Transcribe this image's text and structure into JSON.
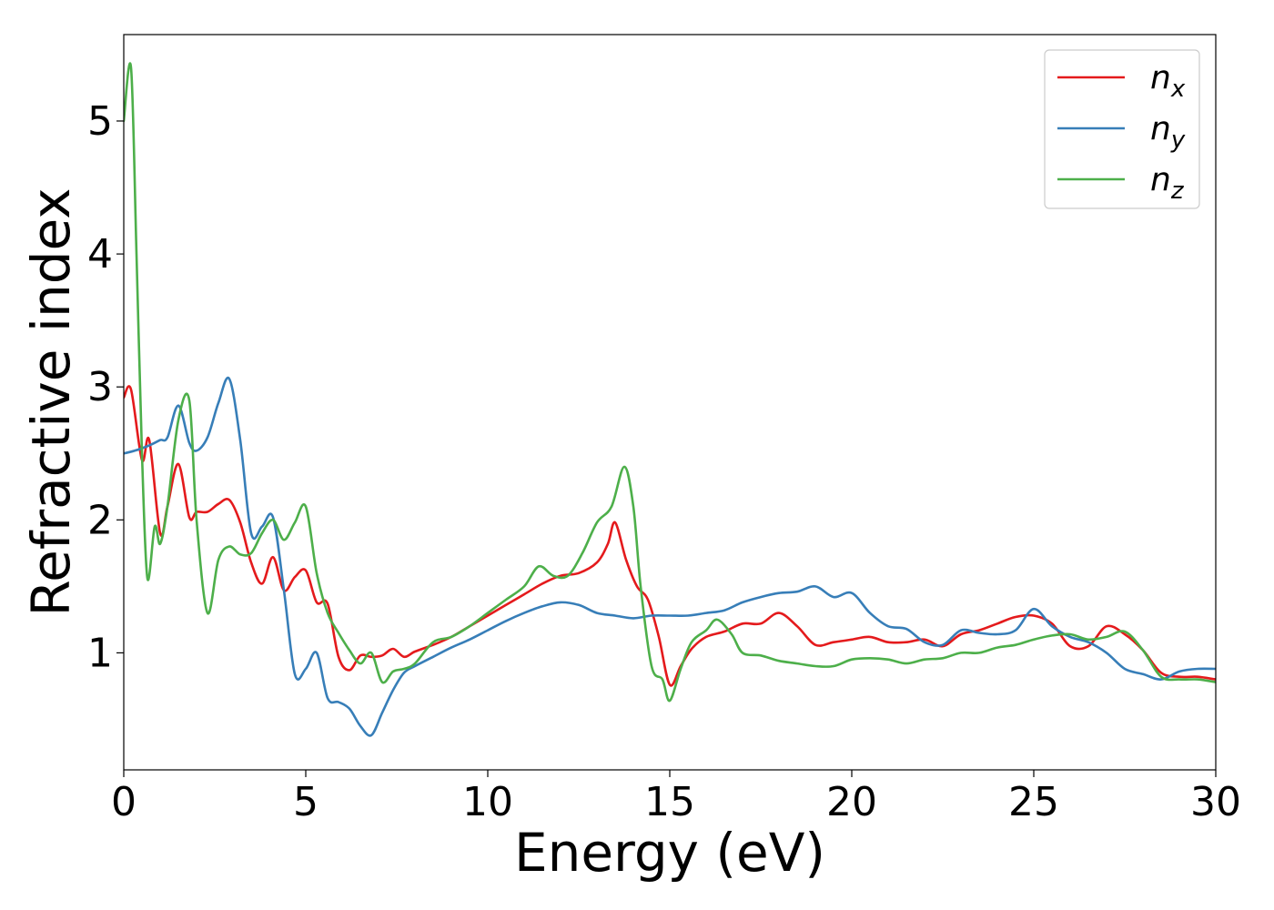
{
  "chart_data": {
    "type": "line",
    "xlabel": "Energy (eV)",
    "ylabel": "Refractive index",
    "xlim": [
      0,
      30
    ],
    "ylim": [
      0.12,
      5.65
    ],
    "xticks": [
      0,
      5,
      10,
      15,
      20,
      25,
      30
    ],
    "yticks": [
      1,
      2,
      3,
      4,
      5
    ],
    "grid": false,
    "legend_position": "top-right",
    "series": [
      {
        "name": "n",
        "subscript": "x",
        "color": "#e41a1c",
        "x": [
          0,
          0.2,
          0.5,
          0.7,
          1.0,
          1.2,
          1.5,
          1.8,
          2.0,
          2.3,
          2.6,
          2.9,
          3.2,
          3.5,
          3.8,
          4.1,
          4.4,
          4.7,
          5.0,
          5.3,
          5.6,
          5.9,
          6.2,
          6.5,
          6.8,
          7.1,
          7.4,
          7.7,
          8.0,
          8.5,
          9.0,
          9.5,
          10.0,
          10.5,
          11.0,
          11.5,
          12.0,
          12.5,
          13.0,
          13.3,
          13.5,
          13.8,
          14.1,
          14.4,
          14.7,
          15.0,
          15.3,
          15.6,
          16.0,
          16.5,
          17.0,
          17.5,
          18.0,
          18.5,
          19.0,
          19.5,
          20.0,
          20.5,
          21.0,
          21.5,
          22.0,
          22.5,
          23.0,
          23.5,
          24.0,
          24.5,
          25.0,
          25.5,
          26.0,
          26.5,
          27.0,
          27.5,
          28.0,
          28.5,
          29.0,
          29.5,
          30.0
        ],
        "y": [
          2.92,
          2.98,
          2.45,
          2.6,
          1.9,
          2.1,
          2.42,
          2.02,
          2.06,
          2.06,
          2.12,
          2.15,
          1.98,
          1.68,
          1.52,
          1.72,
          1.47,
          1.57,
          1.62,
          1.38,
          1.37,
          0.97,
          0.87,
          0.98,
          0.97,
          0.98,
          1.03,
          0.97,
          1.01,
          1.06,
          1.12,
          1.2,
          1.28,
          1.36,
          1.44,
          1.52,
          1.58,
          1.6,
          1.68,
          1.82,
          1.98,
          1.7,
          1.5,
          1.4,
          1.12,
          0.76,
          0.9,
          1.03,
          1.12,
          1.16,
          1.22,
          1.22,
          1.3,
          1.2,
          1.06,
          1.08,
          1.1,
          1.12,
          1.08,
          1.08,
          1.1,
          1.05,
          1.14,
          1.17,
          1.22,
          1.27,
          1.28,
          1.22,
          1.05,
          1.05,
          1.2,
          1.14,
          1.02,
          0.85,
          0.82,
          0.82,
          0.8
        ]
      },
      {
        "name": "n",
        "subscript": "y",
        "color": "#377eb8",
        "x": [
          0,
          0.3,
          0.7,
          1.0,
          1.2,
          1.5,
          1.8,
          2.0,
          2.3,
          2.6,
          2.9,
          3.2,
          3.5,
          3.8,
          4.1,
          4.4,
          4.7,
          5.0,
          5.3,
          5.6,
          5.9,
          6.2,
          6.5,
          6.8,
          7.1,
          7.4,
          7.7,
          8.0,
          8.5,
          9.0,
          9.5,
          10.0,
          10.5,
          11.0,
          11.5,
          12.0,
          12.5,
          13.0,
          13.5,
          14.0,
          14.5,
          15.0,
          15.5,
          16.0,
          16.5,
          17.0,
          17.5,
          18.0,
          18.5,
          19.0,
          19.5,
          20.0,
          20.5,
          21.0,
          21.5,
          22.0,
          22.5,
          23.0,
          23.5,
          24.0,
          24.5,
          25.0,
          25.5,
          26.0,
          26.5,
          27.0,
          27.5,
          28.0,
          28.5,
          29.0,
          29.5,
          30.0
        ],
        "y": [
          2.5,
          2.52,
          2.56,
          2.6,
          2.62,
          2.86,
          2.58,
          2.52,
          2.62,
          2.88,
          3.06,
          2.6,
          1.9,
          1.95,
          2.02,
          1.47,
          0.84,
          0.88,
          1.0,
          0.66,
          0.63,
          0.58,
          0.45,
          0.38,
          0.55,
          0.72,
          0.85,
          0.9,
          0.97,
          1.04,
          1.1,
          1.17,
          1.24,
          1.3,
          1.35,
          1.38,
          1.36,
          1.3,
          1.28,
          1.26,
          1.28,
          1.28,
          1.28,
          1.3,
          1.32,
          1.38,
          1.42,
          1.45,
          1.46,
          1.5,
          1.42,
          1.45,
          1.3,
          1.2,
          1.18,
          1.08,
          1.06,
          1.17,
          1.15,
          1.14,
          1.17,
          1.33,
          1.2,
          1.12,
          1.08,
          1.0,
          0.88,
          0.84,
          0.8,
          0.86,
          0.88,
          0.88
        ]
      },
      {
        "name": "n",
        "subscript": "z",
        "color": "#4daf4a",
        "x": [
          0,
          0.2,
          0.35,
          0.5,
          0.65,
          0.85,
          1.0,
          1.2,
          1.5,
          1.8,
          2.0,
          2.3,
          2.6,
          2.9,
          3.2,
          3.5,
          3.8,
          4.1,
          4.4,
          4.7,
          5.0,
          5.3,
          5.6,
          5.9,
          6.2,
          6.5,
          6.8,
          7.1,
          7.4,
          7.7,
          8.0,
          8.5,
          9.0,
          9.5,
          10.0,
          10.5,
          11.0,
          11.4,
          11.8,
          12.2,
          12.6,
          13.0,
          13.4,
          13.75,
          14.0,
          14.2,
          14.5,
          14.8,
          15.0,
          15.3,
          15.6,
          16.0,
          16.3,
          16.7,
          17.0,
          17.5,
          18.0,
          18.5,
          19.0,
          19.5,
          20.0,
          20.5,
          21.0,
          21.5,
          22.0,
          22.5,
          23.0,
          23.5,
          24.0,
          24.5,
          25.0,
          25.5,
          26.0,
          26.5,
          27.0,
          27.5,
          28.0,
          28.5,
          29.0,
          29.5,
          30.0
        ],
        "y": [
          5.0,
          5.4,
          4.0,
          2.5,
          1.56,
          1.95,
          1.82,
          2.1,
          2.75,
          2.9,
          2.0,
          1.3,
          1.7,
          1.8,
          1.74,
          1.75,
          1.9,
          2.0,
          1.85,
          1.98,
          2.1,
          1.6,
          1.3,
          1.15,
          1.02,
          0.92,
          1.0,
          0.78,
          0.86,
          0.88,
          0.92,
          1.08,
          1.12,
          1.2,
          1.3,
          1.4,
          1.5,
          1.65,
          1.58,
          1.58,
          1.75,
          1.98,
          2.1,
          2.4,
          2.1,
          1.5,
          0.9,
          0.8,
          0.64,
          0.88,
          1.08,
          1.17,
          1.25,
          1.14,
          1.0,
          0.98,
          0.94,
          0.92,
          0.9,
          0.9,
          0.95,
          0.96,
          0.95,
          0.92,
          0.95,
          0.96,
          1.0,
          1.0,
          1.04,
          1.06,
          1.1,
          1.13,
          1.14,
          1.1,
          1.12,
          1.16,
          1.02,
          0.82,
          0.8,
          0.8,
          0.78
        ]
      }
    ]
  }
}
